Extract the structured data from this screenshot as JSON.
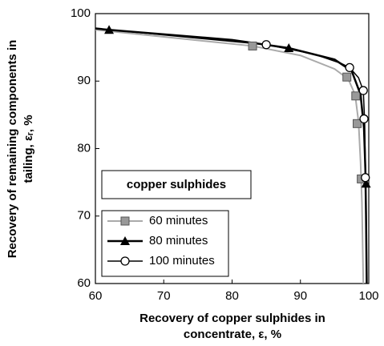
{
  "chart_data": {
    "type": "scatter",
    "xlabel": [
      "Recovery of copper sulphides in",
      "concentrate, ε, %"
    ],
    "ylabel": [
      "Recovery of remaining components in",
      "tailing, εᵣ, %"
    ],
    "annotation": "copper sulphides",
    "xlim": [
      60,
      100
    ],
    "xticks": [
      60,
      70,
      80,
      90,
      100
    ],
    "ylim": [
      60,
      100
    ],
    "yticks": [
      60,
      70,
      80,
      90,
      100
    ],
    "legend": "lower left",
    "series": [
      {
        "name": "60 minutes",
        "color": "#999999",
        "marker": "square",
        "x": [
          83,
          96.8,
          98.1,
          98.3,
          98.9
        ],
        "values": [
          95.2,
          90.6,
          87.8,
          83.7,
          75.5
        ],
        "fit": {
          "x": [
            60,
            83,
            90,
            95,
            97,
            98,
            98.5,
            98.8,
            99,
            99.2
          ],
          "y": [
            97.6,
            95.2,
            93.8,
            91.8,
            90.3,
            88,
            84,
            78,
            72,
            60
          ]
        }
      },
      {
        "name": "80 minutes",
        "color": "#000000",
        "marker": "triangle",
        "x": [
          62,
          88.3,
          99.6
        ],
        "values": [
          97.6,
          94.9,
          74.8
        ],
        "fit": {
          "x": [
            60,
            62,
            80,
            88.3,
            95,
            97.5,
            98.8,
            99.3,
            99.5,
            99.6,
            99.7
          ],
          "y": [
            97.8,
            97.6,
            96.1,
            94.9,
            93.2,
            91.5,
            88,
            83,
            77,
            70,
            60
          ]
        }
      },
      {
        "name": "100 minutes",
        "color": "#000000",
        "marker": "circle",
        "x": [
          85,
          97.2,
          99.2,
          99.3,
          99.5
        ],
        "values": [
          95.4,
          92,
          88.6,
          84.4,
          75.7
        ],
        "fit": {
          "x": [
            60,
            85,
            92,
            96,
            97.2,
            98.5,
            99.2,
            99.4,
            99.5,
            99.6,
            99.7
          ],
          "y": [
            97.8,
            95.4,
            94,
            92.6,
            92,
            90.5,
            88.6,
            84,
            78,
            70,
            60
          ]
        }
      }
    ]
  }
}
